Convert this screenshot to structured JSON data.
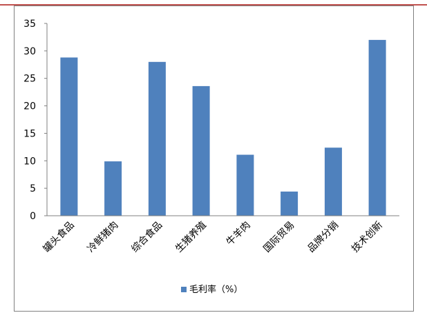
{
  "chart_data": {
    "type": "bar",
    "categories": [
      "罐头食品",
      "冷鲜猪肉",
      "综合食品",
      "生猪养殖",
      "牛羊肉",
      "国际贸易",
      "品牌分销",
      "技术创新"
    ],
    "series": [
      {
        "name": "毛利率（%）",
        "values": [
          28.8,
          9.9,
          28.0,
          23.6,
          11.1,
          4.4,
          12.4,
          32.0
        ],
        "color": "#4f81bd"
      }
    ],
    "title": "",
    "xlabel": "",
    "ylabel": "",
    "ylim": [
      0,
      35
    ],
    "yticks": [
      "0",
      "5",
      "10",
      "15",
      "20",
      "25",
      "30",
      "35"
    ],
    "grid": false,
    "legend_position": "bottom"
  },
  "colors": {
    "accent_line": "#c0504d",
    "frame": "#7f7f7f",
    "axis": "#7f7f7f"
  }
}
